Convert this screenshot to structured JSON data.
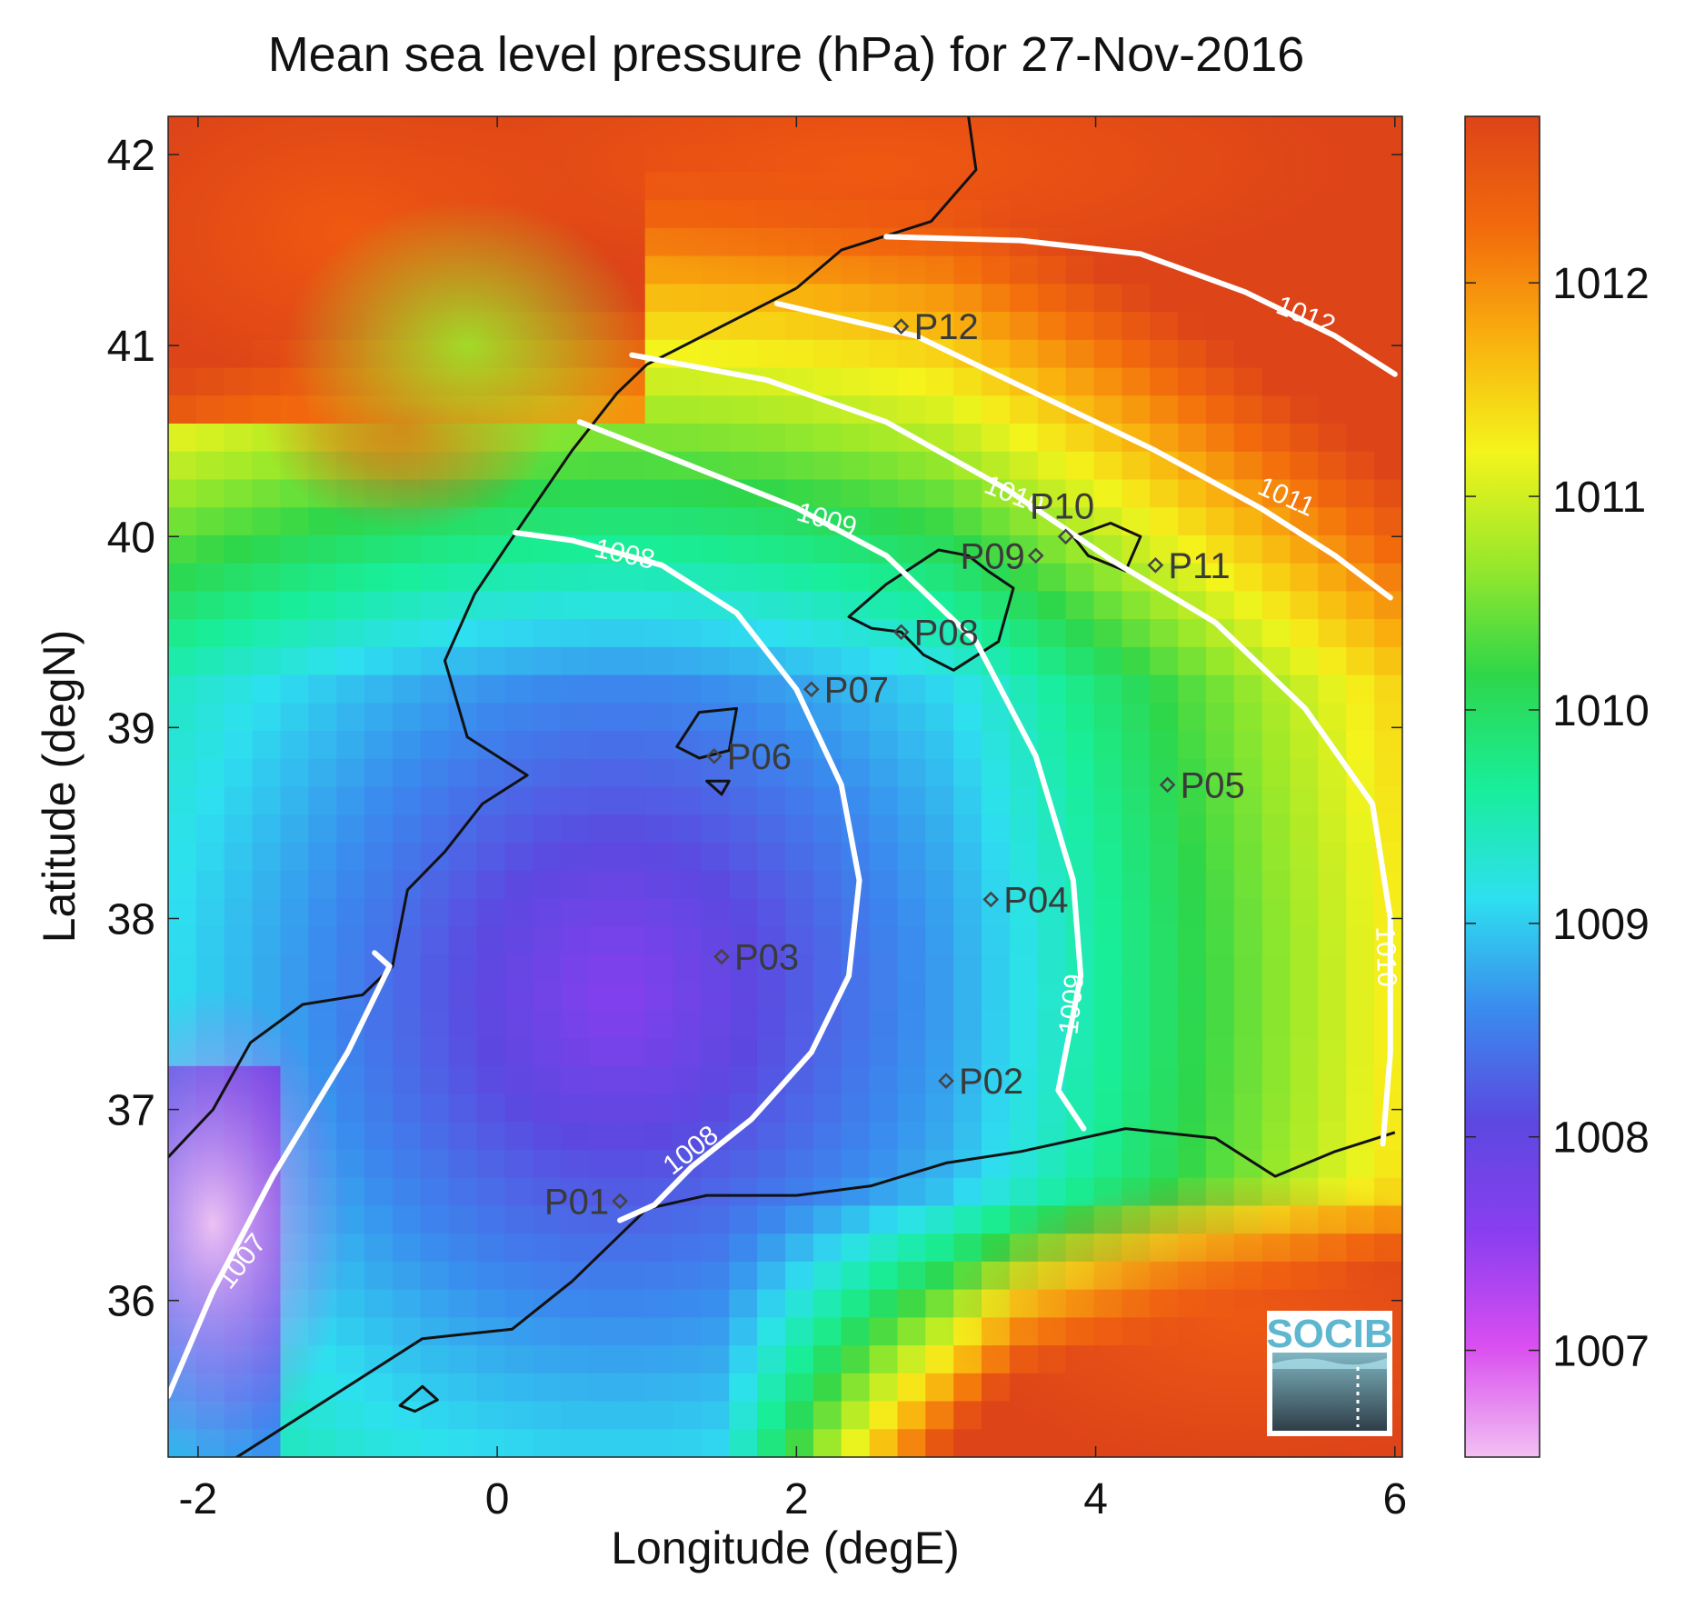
{
  "title": "Mean sea level pressure (hPa) for 27-Nov-2016",
  "xaxis": {
    "label": "Longitude (degE)",
    "range": [
      -2.2,
      6.05
    ],
    "ticks": [
      {
        "v": -2,
        "t": "-2"
      },
      {
        "v": 0,
        "t": "0"
      },
      {
        "v": 2,
        "t": "2"
      },
      {
        "v": 4,
        "t": "4"
      },
      {
        "v": 6,
        "t": "6"
      }
    ]
  },
  "yaxis": {
    "label": "Latitude (degN)",
    "range": [
      35.18,
      42.2
    ],
    "ticks": [
      {
        "v": 36,
        "t": "36"
      },
      {
        "v": 37,
        "t": "37"
      },
      {
        "v": 38,
        "t": "38"
      },
      {
        "v": 39,
        "t": "39"
      },
      {
        "v": 40,
        "t": "40"
      },
      {
        "v": 41,
        "t": "41"
      },
      {
        "v": 42,
        "t": "42"
      }
    ]
  },
  "colorbar": {
    "range": [
      1006.5,
      1012.78
    ],
    "colors": [
      "#f2c0f2",
      "#d94ef0",
      "#8a3ef0",
      "#5c48e0",
      "#3a8aee",
      "#2ee0ef",
      "#18ee9a",
      "#2ed64a",
      "#9ae82a",
      "#f4f41c",
      "#f9b10e",
      "#f26a0c",
      "#dd4418"
    ],
    "ticks": [
      {
        "v": 1007,
        "t": "1007"
      },
      {
        "v": 1008,
        "t": "1008"
      },
      {
        "v": 1009,
        "t": "1009"
      },
      {
        "v": 1010,
        "t": "1010"
      },
      {
        "v": 1011,
        "t": "1011"
      },
      {
        "v": 1012,
        "t": "1012"
      }
    ]
  },
  "contours": [
    {
      "level": 1007,
      "label": "1007",
      "points": [
        [
          -2.2,
          35.5
        ],
        [
          -1.9,
          36.05
        ],
        [
          -1.5,
          36.65
        ],
        [
          -1.0,
          37.3
        ],
        [
          -0.72,
          37.75
        ],
        [
          -0.82,
          37.82
        ]
      ],
      "labels": [
        {
          "lon": -1.7,
          "lat": 36.2,
          "angle": -52
        }
      ]
    },
    {
      "level": 1008,
      "label": "1008",
      "points": [
        [
          0.12,
          40.02
        ],
        [
          0.5,
          39.98
        ],
        [
          1.1,
          39.85
        ],
        [
          1.6,
          39.6
        ],
        [
          2.0,
          39.2
        ],
        [
          2.3,
          38.7
        ],
        [
          2.42,
          38.2
        ],
        [
          2.35,
          37.7
        ],
        [
          2.1,
          37.3
        ],
        [
          1.7,
          36.95
        ],
        [
          1.3,
          36.7
        ],
        [
          1.05,
          36.5
        ],
        [
          0.82,
          36.42
        ]
      ],
      "labels": [
        {
          "lon": 0.85,
          "lat": 39.9,
          "angle": 12
        },
        {
          "lon": 1.3,
          "lat": 36.78,
          "angle": -38
        }
      ]
    },
    {
      "level": 1009,
      "label": "1009",
      "points": [
        [
          0.55,
          40.6
        ],
        [
          1.2,
          40.4
        ],
        [
          2.0,
          40.15
        ],
        [
          2.6,
          39.9
        ],
        [
          3.2,
          39.45
        ],
        [
          3.6,
          38.85
        ],
        [
          3.85,
          38.2
        ],
        [
          3.9,
          37.7
        ],
        [
          3.75,
          37.1
        ],
        [
          3.92,
          36.9
        ]
      ],
      "labels": [
        {
          "lon": 2.2,
          "lat": 40.08,
          "angle": 16
        },
        {
          "lon": 3.85,
          "lat": 37.55,
          "angle": -84
        }
      ]
    },
    {
      "level": 1010,
      "label": "1010",
      "points": [
        [
          0.9,
          40.95
        ],
        [
          1.8,
          40.82
        ],
        [
          2.6,
          40.6
        ],
        [
          3.4,
          40.25
        ],
        [
          4.1,
          39.88
        ],
        [
          4.8,
          39.55
        ],
        [
          5.4,
          39.1
        ],
        [
          5.85,
          38.6
        ],
        [
          5.97,
          38.0
        ],
        [
          5.97,
          37.3
        ],
        [
          5.92,
          36.82
        ]
      ],
      "labels": [
        {
          "lon": 3.45,
          "lat": 40.21,
          "angle": 22
        },
        {
          "lon": 5.93,
          "lat": 37.8,
          "angle": 88
        }
      ]
    },
    {
      "level": 1011,
      "label": "1011",
      "points": [
        [
          1.87,
          41.22
        ],
        [
          2.8,
          41.05
        ],
        [
          3.6,
          40.75
        ],
        [
          4.4,
          40.45
        ],
        [
          5.1,
          40.15
        ],
        [
          5.6,
          39.9
        ],
        [
          5.97,
          39.68
        ]
      ],
      "labels": [
        {
          "lon": 5.27,
          "lat": 40.2,
          "angle": 24
        }
      ]
    },
    {
      "level": 1012,
      "label": "1012",
      "points": [
        [
          2.6,
          41.57
        ],
        [
          3.5,
          41.55
        ],
        [
          4.3,
          41.48
        ],
        [
          5.0,
          41.28
        ],
        [
          5.6,
          41.05
        ],
        [
          6.0,
          40.85
        ]
      ],
      "labels": [
        {
          "lon": 5.4,
          "lat": 41.15,
          "angle": 22
        }
      ]
    }
  ],
  "stations": [
    {
      "id": "P01",
      "lon": 0.82,
      "lat": 36.52,
      "anchor": "end"
    },
    {
      "id": "P02",
      "lon": 3.0,
      "lat": 37.15,
      "anchor": "start"
    },
    {
      "id": "P03",
      "lon": 1.5,
      "lat": 37.8,
      "anchor": "start"
    },
    {
      "id": "P04",
      "lon": 3.3,
      "lat": 38.1,
      "anchor": "start"
    },
    {
      "id": "P05",
      "lon": 4.48,
      "lat": 38.7,
      "anchor": "start"
    },
    {
      "id": "P06",
      "lon": 1.45,
      "lat": 38.85,
      "anchor": "start"
    },
    {
      "id": "P07",
      "lon": 2.1,
      "lat": 39.2,
      "anchor": "start"
    },
    {
      "id": "P08",
      "lon": 2.7,
      "lat": 39.5,
      "anchor": "start"
    },
    {
      "id": "P09",
      "lon": 3.6,
      "lat": 39.9,
      "anchor": "end"
    },
    {
      "id": "P10",
      "lon": 3.8,
      "lat": 40.0,
      "anchor": "middle"
    },
    {
      "id": "P11",
      "lon": 4.4,
      "lat": 39.85,
      "anchor": "start"
    },
    {
      "id": "P12",
      "lon": 2.7,
      "lat": 41.1,
      "anchor": "start"
    }
  ],
  "coastlines": {
    "mainland": [
      [
        2.0,
        41.3
      ],
      [
        2.3,
        41.5
      ],
      [
        2.9,
        41.65
      ],
      [
        3.2,
        41.92
      ],
      [
        3.15,
        42.2
      ]
    ],
    "iberia": [
      [
        2.0,
        41.3
      ],
      [
        1.5,
        41.1
      ],
      [
        1.0,
        40.9
      ],
      [
        0.8,
        40.75
      ],
      [
        0.5,
        40.45
      ],
      [
        0.15,
        40.05
      ],
      [
        -0.15,
        39.7
      ],
      [
        -0.35,
        39.35
      ],
      [
        -0.2,
        38.95
      ],
      [
        0.2,
        38.75
      ],
      [
        -0.1,
        38.6
      ],
      [
        -0.35,
        38.35
      ],
      [
        -0.6,
        38.15
      ],
      [
        -0.7,
        37.75
      ],
      [
        -0.9,
        37.6
      ],
      [
        -1.3,
        37.55
      ],
      [
        -1.65,
        37.35
      ],
      [
        -1.9,
        37.0
      ],
      [
        -2.2,
        36.75
      ]
    ],
    "africa": [
      [
        6.0,
        36.88
      ],
      [
        5.6,
        36.78
      ],
      [
        5.2,
        36.65
      ],
      [
        4.8,
        36.85
      ],
      [
        4.2,
        36.9
      ],
      [
        3.5,
        36.78
      ],
      [
        3.0,
        36.72
      ],
      [
        2.5,
        36.6
      ],
      [
        2.0,
        36.55
      ],
      [
        1.4,
        36.55
      ],
      [
        1.0,
        36.48
      ],
      [
        0.5,
        36.1
      ],
      [
        0.1,
        35.85
      ],
      [
        -0.5,
        35.8
      ],
      [
        -1.0,
        35.55
      ],
      [
        -1.5,
        35.3
      ],
      [
        -1.8,
        35.15
      ]
    ],
    "mallorca": [
      [
        2.35,
        39.58
      ],
      [
        2.6,
        39.75
      ],
      [
        2.95,
        39.93
      ],
      [
        3.15,
        39.9
      ],
      [
        3.28,
        39.82
      ],
      [
        3.45,
        39.73
      ],
      [
        3.35,
        39.45
      ],
      [
        3.05,
        39.3
      ],
      [
        2.85,
        39.38
      ],
      [
        2.7,
        39.5
      ],
      [
        2.5,
        39.52
      ],
      [
        2.35,
        39.58
      ]
    ],
    "menorca": [
      [
        3.85,
        40.0
      ],
      [
        4.1,
        40.07
      ],
      [
        4.3,
        40.0
      ],
      [
        4.2,
        39.82
      ],
      [
        3.95,
        39.9
      ],
      [
        3.85,
        40.0
      ]
    ],
    "ibiza": [
      [
        1.2,
        38.9
      ],
      [
        1.35,
        39.08
      ],
      [
        1.6,
        39.1
      ],
      [
        1.55,
        38.88
      ],
      [
        1.35,
        38.84
      ],
      [
        1.2,
        38.9
      ]
    ],
    "formentera": [
      [
        1.4,
        38.72
      ],
      [
        1.55,
        38.72
      ],
      [
        1.5,
        38.65
      ],
      [
        1.4,
        38.72
      ]
    ],
    "alboran": [
      [
        -0.65,
        35.45
      ],
      [
        -0.5,
        35.55
      ],
      [
        -0.4,
        35.48
      ],
      [
        -0.55,
        35.42
      ],
      [
        -0.65,
        35.45
      ]
    ]
  },
  "logo": {
    "text": "SOCIB"
  }
}
